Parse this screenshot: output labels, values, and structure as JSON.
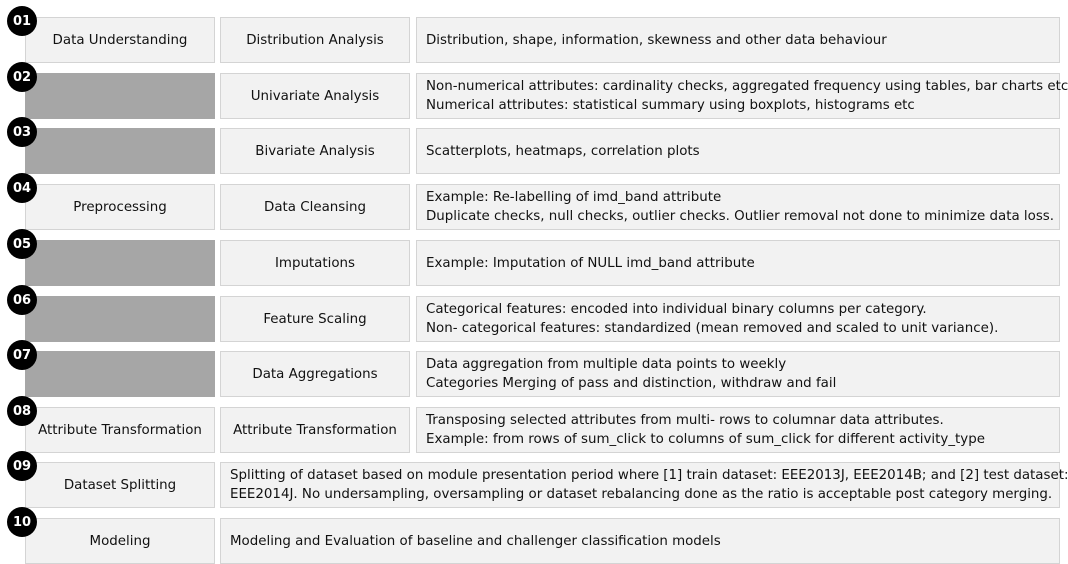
{
  "rows": [
    {
      "num": "01",
      "phase": "Data Understanding",
      "step": "Distribution Analysis",
      "desc": [
        "Distribution, shape, information, skewness and other data behaviour"
      ]
    },
    {
      "num": "02",
      "phase": "",
      "step": "Univariate Analysis",
      "desc": [
        "Non-numerical attributes: cardinality checks, aggregated frequency using tables, bar charts etc",
        "Numerical attributes: statistical summary using boxplots, histograms etc"
      ]
    },
    {
      "num": "03",
      "phase": "",
      "step": "Bivariate Analysis",
      "desc": [
        "Scatterplots, heatmaps, correlation plots"
      ]
    },
    {
      "num": "04",
      "phase": "Preprocessing",
      "step": "Data Cleansing",
      "desc": [
        "Example: Re-labelling of imd_band attribute",
        "Duplicate checks, null checks, outlier checks. Outlier removal not done to minimize data loss."
      ]
    },
    {
      "num": "05",
      "phase": "",
      "step": "Imputations",
      "desc": [
        "Example: Imputation of NULL imd_band attribute"
      ]
    },
    {
      "num": "06",
      "phase": "",
      "step": "Feature Scaling",
      "desc": [
        "Categorical features: encoded into individual binary columns per category.",
        "Non- categorical features: standardized (mean removed and scaled to unit variance)."
      ]
    },
    {
      "num": "07",
      "phase": "",
      "step": "Data Aggregations",
      "desc": [
        "Data aggregation from multiple data points to weekly",
        "Categories Merging of pass and distinction, withdraw and fail"
      ]
    },
    {
      "num": "08",
      "phase": "Attribute Transformation",
      "step": "Attribute Transformation",
      "desc": [
        "Transposing selected attributes from multi- rows to columnar data attributes.",
        "Example: from rows of sum_click to columns of sum_click for different activity_type"
      ]
    },
    {
      "num": "09",
      "phase": "Dataset Splitting",
      "desc": [
        "Splitting of dataset based on module presentation period where [1] train dataset: EEE2013J, EEE2014B; and [2] test dataset:",
        "EEE2014J. No undersampling, oversampling or dataset rebalancing done as the ratio is acceptable post category merging."
      ]
    },
    {
      "num": "10",
      "phase": "Modeling",
      "desc": [
        "Modeling and Evaluation of baseline and challenger classification models"
      ]
    }
  ]
}
